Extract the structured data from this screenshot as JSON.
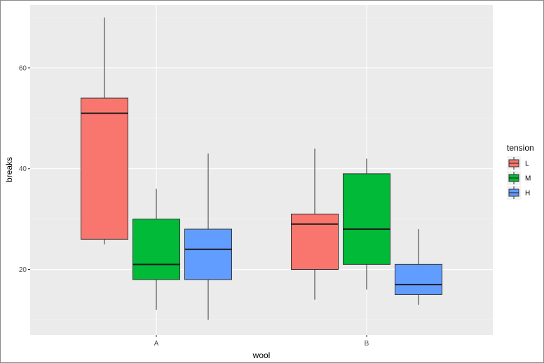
{
  "chart_data": {
    "type": "boxplot",
    "title": "",
    "xlabel": "wool",
    "ylabel": "breaks",
    "categories": [
      "A",
      "B"
    ],
    "y_ticks": [
      20,
      40,
      60
    ],
    "ylim": [
      7.0,
      72.5
    ],
    "grid": true,
    "legend": {
      "title": "tension",
      "position": "right",
      "items": [
        {
          "label": "L",
          "color": "#F8766D"
        },
        {
          "label": "M",
          "color": "#00BA38"
        },
        {
          "label": "H",
          "color": "#619CFF"
        }
      ]
    },
    "series": [
      {
        "name": "L",
        "color": "#F8766D",
        "boxes": [
          {
            "category": "A",
            "min": 25,
            "q1": 26,
            "median": 51,
            "q3": 54,
            "max": 70
          },
          {
            "category": "B",
            "min": 14,
            "q1": 20,
            "median": 29,
            "q3": 31,
            "max": 44
          }
        ]
      },
      {
        "name": "M",
        "color": "#00BA38",
        "boxes": [
          {
            "category": "A",
            "min": 12,
            "q1": 18,
            "median": 21,
            "q3": 30,
            "max": 36
          },
          {
            "category": "B",
            "min": 16,
            "q1": 21,
            "median": 28,
            "q3": 39,
            "max": 42
          }
        ]
      },
      {
        "name": "H",
        "color": "#619CFF",
        "boxes": [
          {
            "category": "A",
            "min": 10,
            "q1": 18,
            "median": 24,
            "q3": 28,
            "max": 43
          },
          {
            "category": "B",
            "min": 13,
            "q1": 15,
            "median": 17,
            "q3": 21,
            "max": 28
          }
        ]
      }
    ]
  }
}
